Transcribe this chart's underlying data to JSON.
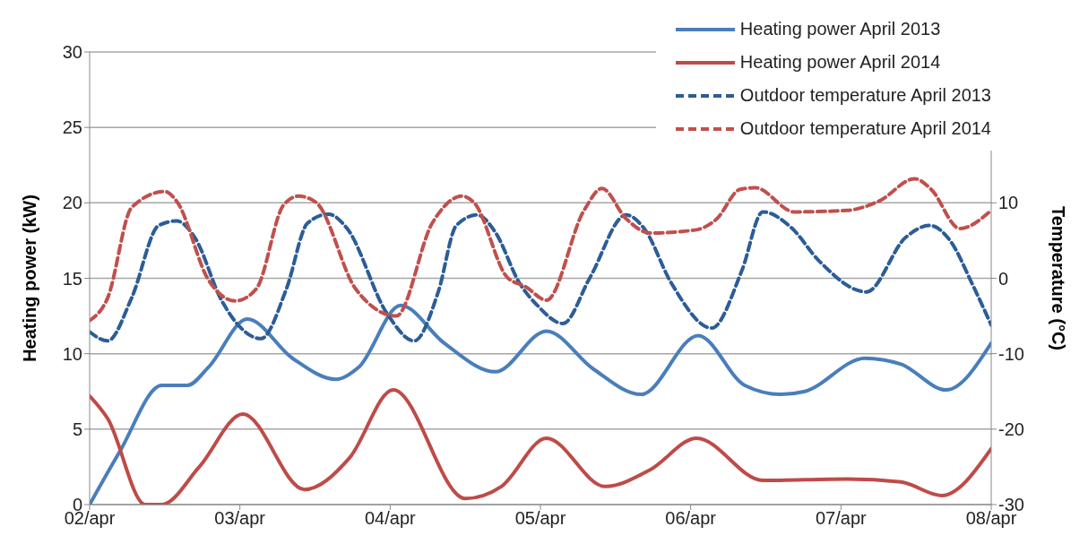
{
  "chart_data": {
    "type": "line",
    "ylabel": "Heating power (kW)",
    "y2label": "Temperature (°C)",
    "xlim": [
      "--04-02",
      "--04-08"
    ],
    "xticks": [
      {
        "value": "--04-02",
        "label": "02/apr"
      },
      {
        "value": "--04-03",
        "label": "03/apr"
      },
      {
        "value": "--04-04",
        "label": "04/apr"
      },
      {
        "value": "--04-05",
        "label": "05/apr"
      },
      {
        "value": "--04-06",
        "label": "06/apr"
      },
      {
        "value": "--04-07",
        "label": "07/apr"
      },
      {
        "value": "--04-08",
        "label": "08/apr"
      }
    ],
    "ylim": [
      0,
      30
    ],
    "yticks": [
      0,
      5,
      10,
      15,
      20,
      25,
      30
    ],
    "y2lim": [
      -30,
      30
    ],
    "y2ticks": [
      -30,
      -20,
      -10,
      0,
      10
    ],
    "grid": "y",
    "legend": "top right",
    "marker": "none",
    "series": [
      {
        "name": "Heating power April 2013",
        "color": "#4a7ebb",
        "line_style": "solid",
        "x": [
          "--04-02T00:00",
          "--04-02T04:48",
          "--04-02T11:31",
          "--04-02T15:36",
          "--04-02T18:58",
          "--04-03T01:12",
          "--04-03T08:24",
          "--04-03T15:22",
          "--04-03T18:58",
          "--04-04T01:41",
          "--04-04T08:38",
          "--04-04T16:48",
          "--04-05T00:58",
          "--04-05T08:24",
          "--04-05T16:05",
          "--04-06T01:12",
          "--04-06T08:38",
          "--04-06T14:24",
          "--04-06T18:14",
          "--04-07T03:50",
          "--04-07T09:36",
          "--04-07T16:48",
          "--04-08T00:00"
        ],
        "values": [
          0,
          3.5,
          7.9,
          7.9,
          9.1,
          12.3,
          9.7,
          8.3,
          9.1,
          13.2,
          10.7,
          8.8,
          11.5,
          9.0,
          7.3,
          11.2,
          7.9,
          7.3,
          7.5,
          9.7,
          9.3,
          7.6,
          10.7
        ]
      },
      {
        "name": "Heating power April 2014",
        "color": "#be4b48",
        "line_style": "solid",
        "x": [
          "--04-02T00:00",
          "--04-02T02:53",
          "--04-02T08:53",
          "--04-02T11:31",
          "--04-02T17:31",
          "--04-03T00:29",
          "--04-03T10:19",
          "--04-03T17:31",
          "--04-04T00:29",
          "--04-04T12:00",
          "--04-04T17:46",
          "--04-05T00:58",
          "--04-05T10:19",
          "--04-05T17:31",
          "--04-06T00:58",
          "--04-06T11:31",
          "--04-07T00:58",
          "--04-07T09:36",
          "--04-07T16:05",
          "--04-08T00:00"
        ],
        "values": [
          7.2,
          5.7,
          0,
          0,
          2.5,
          6.0,
          1.0,
          3.1,
          7.6,
          0.4,
          1.2,
          4.4,
          1.2,
          2.3,
          4.4,
          1.6,
          1.7,
          1.5,
          0.6,
          3.7
        ]
      },
      {
        "name": "Outdoor temperature April 2013",
        "color": "#2c5d96",
        "line_style": "dashed",
        "axis": "y2",
        "x": [
          "--04-02T00:00",
          "--04-02T02:53",
          "--04-02T06:43",
          "--04-02T11:02",
          "--04-02T13:55",
          "--04-02T16:48",
          "--04-02T21:07",
          "--04-03T03:22",
          "--04-03T07:26",
          "--04-03T10:48",
          "--04-03T14:10",
          "--04-03T17:02",
          "--04-03T23:31",
          "--04-04T03:50",
          "--04-04T07:41",
          "--04-04T10:34",
          "--04-04T13:55",
          "--04-04T16:48",
          "--04-04T20:38",
          "--04-04T23:31",
          "--04-05T03:36",
          "--04-05T07:55",
          "--04-05T13:41",
          "--04-05T16:34",
          "--04-05T20:53",
          "--04-06T03:22",
          "--04-06T08:10",
          "--04-06T11:31",
          "--04-06T16:05",
          "--04-06T20:24",
          "--04-07T04:05",
          "--04-07T10:19",
          "--04-07T14:10",
          "--04-07T17:31",
          "--04-07T20:53",
          "--04-08T00:00"
        ],
        "values": [
          -7.1,
          -8.3,
          -2.6,
          7.0,
          7.6,
          5.4,
          -3.0,
          -8.0,
          -1.4,
          7.3,
          8.5,
          6.7,
          -4.7,
          -8.3,
          -1.8,
          7.0,
          8.4,
          6.1,
          -0.6,
          -3.6,
          -6.0,
          0.1,
          8.4,
          6.6,
          -0.6,
          -6.6,
          1.0,
          8.8,
          6.7,
          2.4,
          -1.8,
          5.4,
          7.0,
          4.9,
          -0.6,
          -6.2
        ]
      },
      {
        "name": "Outdoor temperature April 2014",
        "color": "#c0504d",
        "line_style": "dashed",
        "axis": "y2",
        "x": [
          "--04-02T00:00",
          "--04-02T02:53",
          "--04-02T06:43",
          "--04-02T12:00",
          "--04-02T13:55",
          "--04-02T18:58",
          "--04-02T23:17",
          "--04-03T02:38",
          "--04-03T06:58",
          "--04-03T09:22",
          "--04-03T12:14",
          "--04-03T18:29",
          "--04-04T00:58",
          "--04-04T06:43",
          "--04-04T11:31",
          "--04-04T13:26",
          "--04-04T18:43",
          "--04-04T21:36",
          "--04-05T00:58",
          "--04-05T06:58",
          "--04-05T09:50",
          "--04-05T13:41",
          "--04-05T17:31",
          "--04-06T00:43",
          "--04-06T04:05",
          "--04-06T07:55",
          "--04-06T10:19",
          "--04-06T16:34",
          "--04-07T00:58",
          "--04-07T06:14",
          "--04-07T11:46",
          "--04-07T14:24",
          "--04-07T18:58",
          "--04-08T00:00"
        ],
        "values": [
          -5.6,
          -2.6,
          9.4,
          11.5,
          10.2,
          -0.2,
          -3.0,
          -1.4,
          9.7,
          10.9,
          10.0,
          -1.4,
          -5.0,
          7.3,
          10.9,
          10.0,
          0.1,
          -1.1,
          -2.9,
          9.0,
          11.9,
          7.9,
          6.0,
          6.4,
          7.8,
          11.8,
          12.0,
          8.8,
          9.0,
          10.3,
          13.2,
          11.8,
          6.6,
          9.0
        ]
      }
    ]
  }
}
